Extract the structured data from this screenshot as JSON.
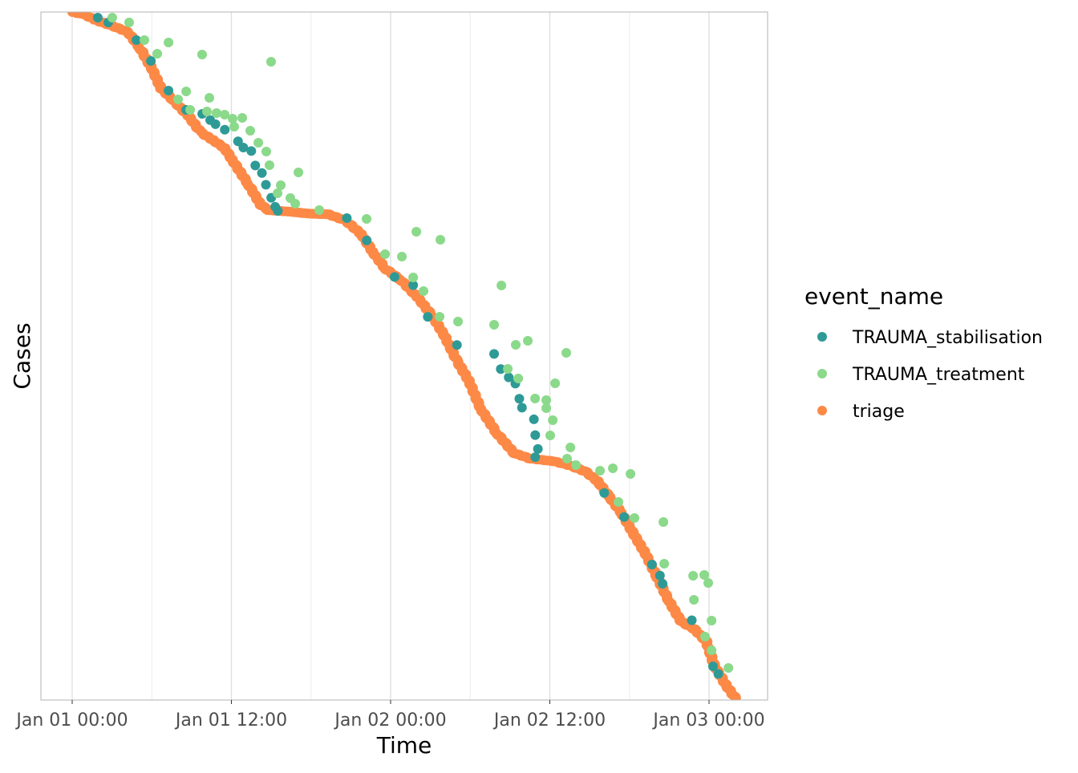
{
  "chart_data": {
    "type": "scatter",
    "title": "",
    "xlabel": "Time",
    "ylabel": "Cases",
    "x_unit": "hours since Jan 01 00:00",
    "y_unit": "case rank (0 = top, 100 = bottom)",
    "xlim": [
      -2.36,
      52.4
    ],
    "ylim": [
      0,
      100
    ],
    "x_ticks": [
      {
        "value": 0,
        "label": "Jan 01 00:00"
      },
      {
        "value": 12,
        "label": "Jan 01 12:00"
      },
      {
        "value": 24,
        "label": "Jan 02 00:00"
      },
      {
        "value": 36,
        "label": "Jan 02 12:00"
      },
      {
        "value": 48,
        "label": "Jan 03 00:00"
      }
    ],
    "x_minor_ticks": [
      6,
      18,
      30,
      42
    ],
    "grid": true,
    "legend": {
      "title": "event_name",
      "placement": "right",
      "entries": [
        {
          "label": "TRAUMA_stabilisation",
          "color": "#2e9a96"
        },
        {
          "label": "TRAUMA_treatment",
          "color": "#8bd98a"
        },
        {
          "label": "triage",
          "color": "#fd8947"
        }
      ]
    },
    "series": [
      {
        "name": "triage",
        "color": "#fd8947",
        "dense_trajectory": true,
        "points": [
          [
            0,
            0
          ],
          [
            0.9,
            0.35
          ],
          [
            1.8,
            1.2
          ],
          [
            3.0,
            2.0
          ],
          [
            4.2,
            2.9
          ],
          [
            5.1,
            5.2
          ],
          [
            6.0,
            8.2
          ],
          [
            6.7,
            11.1
          ],
          [
            7.6,
            12.8
          ],
          [
            8.8,
            15.2
          ],
          [
            9.7,
            17.5
          ],
          [
            10.6,
            18.6
          ],
          [
            11.5,
            19.8
          ],
          [
            12.1,
            21.6
          ],
          [
            13.3,
            25.1
          ],
          [
            14.2,
            28.0
          ],
          [
            14.8,
            28.8
          ],
          [
            16.3,
            29.0
          ],
          [
            17.8,
            29.3
          ],
          [
            19.3,
            29.4
          ],
          [
            20.6,
            30.3
          ],
          [
            21.8,
            32.3
          ],
          [
            22.7,
            35.0
          ],
          [
            23.6,
            37.3
          ],
          [
            24.8,
            39.0
          ],
          [
            26.0,
            41.4
          ],
          [
            27.2,
            44.3
          ],
          [
            28.1,
            47.2
          ],
          [
            29.0,
            50.7
          ],
          [
            29.9,
            53.6
          ],
          [
            30.8,
            57.7
          ],
          [
            32.0,
            61.2
          ],
          [
            33.3,
            64.1
          ],
          [
            34.5,
            64.9
          ],
          [
            36.3,
            65.3
          ],
          [
            37.5,
            65.9
          ],
          [
            38.7,
            66.8
          ],
          [
            39.6,
            68.2
          ],
          [
            40.5,
            70.5
          ],
          [
            41.4,
            72.8
          ],
          [
            42.3,
            75.8
          ],
          [
            43.2,
            78.7
          ],
          [
            44.1,
            82.2
          ],
          [
            45.0,
            85.7
          ],
          [
            45.9,
            88.6
          ],
          [
            46.9,
            89.7
          ],
          [
            47.8,
            91.5
          ],
          [
            48.4,
            95.0
          ],
          [
            49.3,
            97.9
          ],
          [
            50.1,
            100
          ]
        ]
      },
      {
        "name": "TRAUMA_stabilisation",
        "color": "#2e9a96",
        "points": [
          [
            1.93,
            0.82
          ],
          [
            2.72,
            1.52
          ],
          [
            4.84,
            4.08
          ],
          [
            5.93,
            7.11
          ],
          [
            7.26,
            11.42
          ],
          [
            8.59,
            14.22
          ],
          [
            9.8,
            14.8
          ],
          [
            10.4,
            15.7
          ],
          [
            10.8,
            16.3
          ],
          [
            11.5,
            17.1
          ],
          [
            12.5,
            18.8
          ],
          [
            12.9,
            19.7
          ],
          [
            13.5,
            20.2
          ],
          [
            13.8,
            22.3
          ],
          [
            14.3,
            23.4
          ],
          [
            14.6,
            25.1
          ],
          [
            15.0,
            27.0
          ],
          [
            15.3,
            28.3
          ],
          [
            15.5,
            28.9
          ],
          [
            20.7,
            29.95
          ],
          [
            22.2,
            33.2
          ],
          [
            24.3,
            38.5
          ],
          [
            25.7,
            39.7
          ],
          [
            26.8,
            44.3
          ],
          [
            29.0,
            48.4
          ],
          [
            31.8,
            49.7
          ],
          [
            32.3,
            51.9
          ],
          [
            32.9,
            53.1
          ],
          [
            33.4,
            54.0
          ],
          [
            33.7,
            56.2
          ],
          [
            33.9,
            57.5
          ],
          [
            34.8,
            59.2
          ],
          [
            34.9,
            61.5
          ],
          [
            35.1,
            63.5
          ],
          [
            34.9,
            64.7
          ],
          [
            40.1,
            69.9
          ],
          [
            41.6,
            73.4
          ],
          [
            43.7,
            80.3
          ],
          [
            44.3,
            81.9
          ],
          [
            44.5,
            83.1
          ],
          [
            46.7,
            88.4
          ],
          [
            48.3,
            95.1
          ],
          [
            48.7,
            96.2
          ]
        ]
      },
      {
        "name": "TRAUMA_treatment",
        "color": "#8bd98a",
        "points": [
          [
            3.02,
            0.82
          ],
          [
            4.29,
            1.52
          ],
          [
            5.44,
            4.08
          ],
          [
            6.41,
            6.06
          ],
          [
            7.26,
            4.43
          ],
          [
            9.79,
            6.18
          ],
          [
            14.99,
            7.23
          ],
          [
            8.59,
            11.54
          ],
          [
            7.98,
            12.7
          ],
          [
            10.34,
            12.47
          ],
          [
            8.89,
            14.22
          ],
          [
            10.16,
            14.45
          ],
          [
            10.88,
            14.69
          ],
          [
            11.49,
            14.92
          ],
          [
            12.09,
            15.5
          ],
          [
            12.82,
            15.38
          ],
          [
            12.21,
            16.67
          ],
          [
            13.42,
            17.25
          ],
          [
            14.03,
            19.0
          ],
          [
            14.63,
            20.28
          ],
          [
            14.87,
            22.26
          ],
          [
            17.05,
            23.31
          ],
          [
            15.72,
            25.17
          ],
          [
            15.48,
            26.34
          ],
          [
            16.44,
            27.04
          ],
          [
            16.81,
            27.86
          ],
          [
            18.62,
            28.79
          ],
          [
            22.19,
            30.07
          ],
          [
            25.94,
            31.93
          ],
          [
            27.75,
            33.1
          ],
          [
            23.58,
            35.2
          ],
          [
            24.85,
            35.55
          ],
          [
            25.7,
            38.58
          ],
          [
            26.48,
            40.56
          ],
          [
            27.69,
            44.29
          ],
          [
            29.08,
            44.99
          ],
          [
            32.35,
            39.74
          ],
          [
            31.8,
            45.45
          ],
          [
            33.43,
            48.37
          ],
          [
            34.34,
            47.79
          ],
          [
            32.83,
            51.86
          ],
          [
            33.62,
            53.26
          ],
          [
            34.89,
            56.18
          ],
          [
            35.73,
            56.41
          ],
          [
            36.4,
            53.96
          ],
          [
            35.73,
            57.58
          ],
          [
            36.22,
            59.32
          ],
          [
            36.03,
            61.54
          ],
          [
            37.24,
            49.53
          ],
          [
            37.55,
            63.29
          ],
          [
            37.3,
            64.92
          ],
          [
            37.97,
            65.85
          ],
          [
            39.78,
            66.67
          ],
          [
            40.75,
            66.32
          ],
          [
            42.08,
            67.13
          ],
          [
            41.17,
            71.21
          ],
          [
            42.38,
            73.54
          ],
          [
            44.56,
            74.13
          ],
          [
            44.62,
            80.19
          ],
          [
            46.8,
            81.93
          ],
          [
            47.64,
            81.82
          ],
          [
            47.94,
            82.98
          ],
          [
            46.86,
            85.43
          ],
          [
            48.19,
            88.46
          ],
          [
            47.7,
            90.79
          ],
          [
            48.19,
            92.77
          ],
          [
            49.46,
            95.34
          ]
        ]
      }
    ]
  }
}
